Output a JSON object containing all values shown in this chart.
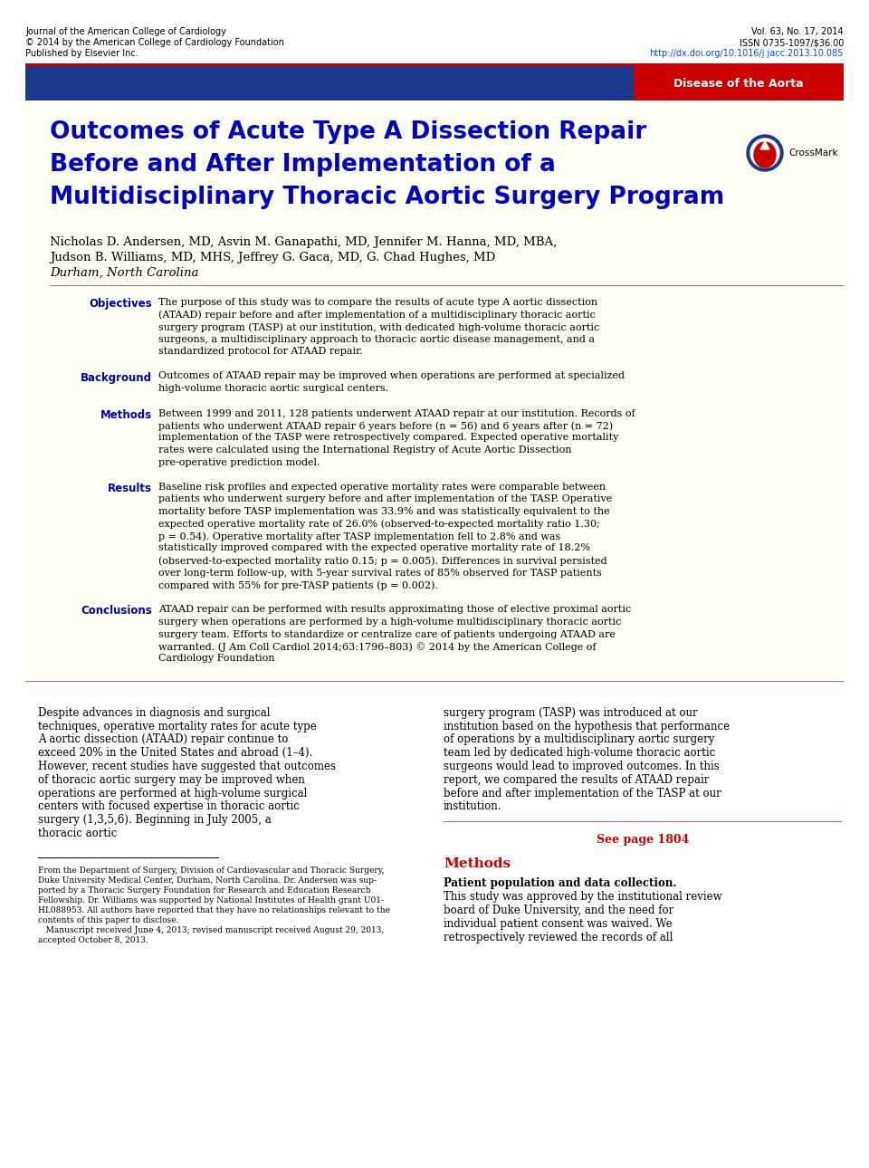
{
  "header_bar_color": "#1a3a8c",
  "disease_tag_color": "#cc0000",
  "disease_tag_text": "Disease of the Aorta",
  "cream_bg": "#fffef5",
  "white_bg": "#ffffff",
  "journal_line1": "Journal of the American College of Cardiology",
  "journal_line2": "© 2014 by the American College of Cardiology Foundation",
  "journal_line3": "Published by Elsevier Inc.",
  "vol_line1": "Vol. 63, No. 17, 2014",
  "vol_line2": "ISSN 0735-1097/$36.00",
  "vol_line3": "http://dx.doi.org/10.1016/j.jacc.2013.10.085",
  "title_line1": "Outcomes of Acute Type A Dissection Repair",
  "title_line2": "Before and After Implementation of a",
  "title_line3": "Multidisciplinary Thoracic Aortic Surgery Program",
  "title_color": "#0000cc",
  "authors_line1": "Nicholas D. Andersen, MD, Asvin M. Ganapathi, MD, Jennifer M. Hanna, MD, MBA,",
  "authors_line2": "Judson B. Williams, MD, MHS, Jeffrey G. Gaca, MD, G. Chad Hughes, MD",
  "affiliation": "Durham, North Carolina",
  "section_label_color": "#0000bb",
  "objectives_label": "Objectives",
  "objectives_text": "The purpose of this study was to compare the results of acute type A aortic dissection (ATAAD) repair before and after implementation of a multidisciplinary thoracic aortic surgery program (TASP) at our institution, with dedicated high-volume thoracic aortic surgeons, a multidisciplinary approach to thoracic aortic disease management, and a standardized protocol for ATAAD repair.",
  "background_label": "Background",
  "background_text": "Outcomes of ATAAD repair may be improved when operations are performed at specialized high-volume thoracic aortic surgical centers.",
  "methods_label": "Methods",
  "methods_text": "Between 1999 and 2011, 128 patients underwent ATAAD repair at our institution. Records of patients who underwent ATAAD repair 6 years before (n = 56) and 6 years after (n = 72) implementation of the TASP were retrospectively compared. Expected operative mortality rates were calculated using the International Registry of Acute Aortic Dissection pre-operative prediction model.",
  "results_label": "Results",
  "results_text": "Baseline risk profiles and expected operative mortality rates were comparable between patients who underwent surgery before and after implementation of the TASP. Operative mortality before TASP implementation was 33.9% and was statistically equivalent to the expected operative mortality rate of 26.0% (observed-to-expected mortality ratio 1.30; p = 0.54). Operative mortality after TASP implementation fell to 2.8% and was statistically improved compared with the expected operative mortality rate of 18.2% (observed-to-expected mortality ratio 0.15; p = 0.005). Differences in survival persisted over long-term follow-up, with 5-year survival rates of 85% observed for TASP patients compared with 55% for pre-TASP patients (p = 0.002).",
  "conclusions_label": "Conclusions",
  "conclusions_text": "ATAAD repair can be performed with results approximating those of elective proximal aortic surgery when operations are performed by a high-volume multidisciplinary thoracic aortic surgery team. Efforts to standardize or centralize care of patients undergoing ATAAD are warranted.    (J Am Coll Cardiol 2014;63:1796–803) © 2014 by the American College of Cardiology Foundation",
  "divider_color": "#cc6666",
  "body_col1_text": "Despite advances in diagnosis and surgical techniques, operative mortality rates for acute type A aortic dissection (ATAAD) repair continue to exceed 20% in the United States and abroad (1–4). However, recent studies have suggested that outcomes of thoracic aortic surgery may be improved when operations are performed at high-volume surgical centers with focused expertise in thoracic aortic surgery (1,3,5,6). Beginning in July 2005, a thoracic aortic",
  "body_col2_text": "surgery program (TASP) was introduced at our institution based on the hypothesis that performance of operations by a multidisciplinary aortic surgery team led by dedicated high-volume thoracic aortic surgeons would lead to improved outcomes. In this report, we compared the results of ATAAD repair before and after implementation of the TASP at our institution.",
  "see_page_text": "See page 1804",
  "see_page_color": "#cc0000",
  "methods_heading": "Methods",
  "methods_heading_color": "#cc0000",
  "patient_heading": "Patient population and data collection.",
  "patient_text": " This study was approved by the institutional review board of Duke University, and the need for individual patient consent was waived. We retrospectively reviewed the records of all",
  "footnote_line1": "From the Department of Surgery, Division of Cardiovascular and Thoracic Surgery,",
  "footnote_line2": "Duke University Medical Center, Durham, North Carolina. Dr. Andersen was sup-",
  "footnote_line3": "ported by a Thoracic Surgery Foundation for Research and Education Research",
  "footnote_line4": "Fellowship. Dr. Williams was supported by National Institutes of Health grant U01-",
  "footnote_line5": "HL088953. All authors have reported that they have no relationships relevant to the",
  "footnote_line6": "contents of this paper to disclose.",
  "footnote_line7": "   Manuscript received June 4, 2013; revised manuscript received August 29, 2013,",
  "footnote_line8": "accepted October 8, 2013."
}
